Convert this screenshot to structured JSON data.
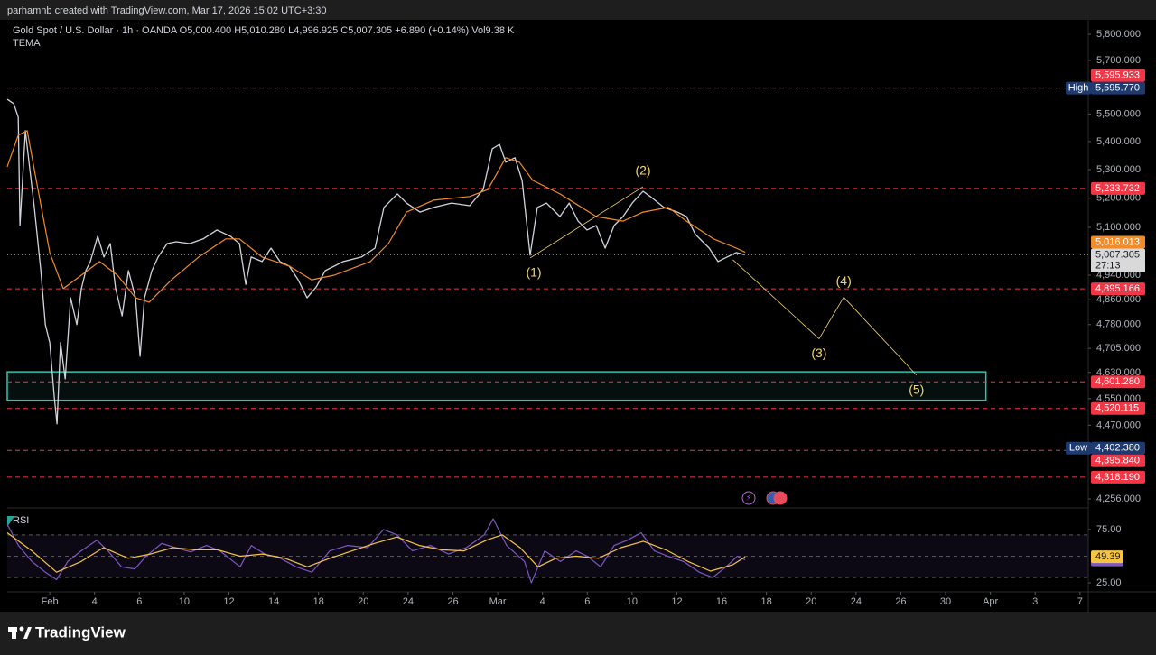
{
  "header": {
    "caption": "parhamnb created with TradingView.com, Mar 17, 2026 15:02 UTC+3:30"
  },
  "footer": {
    "brand": "TradingView"
  },
  "chart_data": [
    {
      "type": "line",
      "ohlc": [
        {
          "key": "O",
          "value": "5,000.400"
        },
        {
          "key": "H",
          "value": "5,010.280"
        },
        {
          "key": "L",
          "value": "4,996.925"
        },
        {
          "key": "C",
          "value": "5,007.305"
        }
      ],
      "change": "+6.890 (+0.14%)",
      "volume": {
        "key": "Vol",
        "value": "9.38 K"
      },
      "log": true,
      "xlim": [
        -1.9,
        46.37
      ],
      "xticks": [
        {
          "value": 0,
          "label": "Feb"
        },
        {
          "value": 2,
          "label": "4"
        },
        {
          "value": 4,
          "label": "6"
        },
        {
          "value": 6,
          "label": "10"
        },
        {
          "value": 8,
          "label": "12"
        },
        {
          "value": 10,
          "label": "14"
        },
        {
          "value": 12,
          "label": "18"
        },
        {
          "value": 14,
          "label": "20"
        },
        {
          "value": 16,
          "label": "24"
        },
        {
          "value": 18,
          "label": "26"
        },
        {
          "value": 20,
          "label": "Mar"
        },
        {
          "value": 22,
          "label": "4"
        },
        {
          "value": 24,
          "label": "6"
        },
        {
          "value": 26,
          "label": "10"
        },
        {
          "value": 28,
          "label": "12"
        },
        {
          "value": 30,
          "label": "16"
        },
        {
          "value": 32,
          "label": "18"
        },
        {
          "value": 34,
          "label": "20"
        },
        {
          "value": 36,
          "label": "24"
        },
        {
          "value": 38,
          "label": "26"
        },
        {
          "value": 40,
          "label": "30"
        },
        {
          "value": 42,
          "label": "Apr"
        },
        {
          "value": 44,
          "label": "3"
        },
        {
          "value": 46,
          "label": "7"
        }
      ],
      "ylim": [
        4233,
        5856
      ],
      "yticks": [
        {
          "value": 5800,
          "label": "5,800.000"
        },
        {
          "value": 5700,
          "label": "5,700.000"
        },
        {
          "value": 5500,
          "label": "5,500.000"
        },
        {
          "value": 5400,
          "label": "5,400.000"
        },
        {
          "value": 5300,
          "label": "5,300.000"
        },
        {
          "value": 5200,
          "label": "5,200.000"
        },
        {
          "value": 5100,
          "label": "5,100.000"
        },
        {
          "value": 4940,
          "label": "4,940.000"
        },
        {
          "value": 4860,
          "label": "4,860.000"
        },
        {
          "value": 4780,
          "label": "4,780.000"
        },
        {
          "value": 4705,
          "label": "4,705.000"
        },
        {
          "value": 4630,
          "label": "4,630.000"
        },
        {
          "value": 4550,
          "label": "4,550.000"
        },
        {
          "value": 4470,
          "label": "4,470.000"
        },
        {
          "value": 4256,
          "label": "4,256.000"
        }
      ],
      "series": [
        {
          "name": "Gold Spot / U.S. Dollar · 1h · OANDA",
          "color": "#d1d4dc",
          "x": [
            -1.9,
            -1.61,
            -1.41,
            -1.33,
            -1.09,
            -0.93,
            -0.69,
            -0.4,
            -0.2,
            0,
            0.2,
            0.32,
            0.48,
            0.69,
            0.93,
            1.21,
            1.41,
            1.61,
            1.81,
            2.14,
            2.42,
            2.7,
            2.94,
            3.23,
            3.51,
            3.83,
            4.03,
            4.23,
            4.56,
            4.84,
            5.24,
            5.65,
            6.25,
            6.85,
            7.46,
            8.06,
            8.47,
            8.75,
            8.99,
            9.48,
            9.88,
            10.28,
            10.69,
            11.09,
            11.49,
            11.9,
            12.3,
            13.1,
            13.91,
            14.52,
            14.92,
            15.52,
            15.93,
            16.53,
            17.14,
            17.94,
            18.75,
            19.35,
            19.76,
            20.08,
            20.36,
            20.77,
            21.09,
            21.45,
            21.77,
            22.18,
            22.78,
            23.19,
            23.59,
            23.99,
            24.4,
            24.8,
            25.2,
            25.6,
            26.01,
            26.49,
            26.81,
            27.42,
            28.02,
            28.43,
            28.83,
            29.44,
            29.84,
            30.24,
            30.65,
            31.05
          ],
          "values": [
            5554,
            5538,
            5488,
            5106,
            5439,
            5326,
            5168,
            4955,
            4780,
            4723,
            4555,
            4474,
            4723,
            4610,
            4866,
            4780,
            4896,
            4955,
            4985,
            5070,
            5000,
            5045,
            4896,
            4808,
            4955,
            4866,
            4680,
            4866,
            4955,
            5000,
            5045,
            5051,
            5045,
            5061,
            5091,
            5070,
            5045,
            4910,
            5000,
            4985,
            5030,
            4985,
            4970,
            4925,
            4866,
            4902,
            4955,
            4985,
            5000,
            5030,
            5168,
            5215,
            5183,
            5152,
            5168,
            5183,
            5174,
            5230,
            5374,
            5390,
            5326,
            5342,
            5262,
            5006,
            5168,
            5183,
            5137,
            5183,
            5121,
            5091,
            5106,
            5030,
            5106,
            5137,
            5183,
            5224,
            5206,
            5168,
            5152,
            5137,
            5076,
            5030,
            4985,
            5000,
            5015,
            5007.305
          ]
        },
        {
          "name": "TEMA",
          "color": "#f28c28",
          "x": [
            -1.9,
            -1.41,
            -1.01,
            -0.6,
            0,
            0.6,
            1.41,
            2.22,
            3.02,
            3.83,
            4.44,
            5.44,
            6.65,
            7.86,
            8.47,
            9.48,
            10.69,
            11.69,
            12.7,
            14.31,
            15.12,
            15.93,
            17.14,
            18.75,
            19.56,
            20.36,
            20.97,
            21.57,
            22.78,
            24.4,
            25.6,
            26.49,
            27.62,
            28.43,
            29.64,
            30.65,
            31.05
          ],
          "values": [
            5310,
            5423,
            5439,
            5262,
            5015,
            4896,
            4940,
            4985,
            4940,
            4866,
            4852,
            4925,
            5000,
            5061,
            5061,
            5000,
            4970,
            4925,
            4940,
            4985,
            5045,
            5152,
            5193,
            5206,
            5230,
            5342,
            5326,
            5262,
            5215,
            5137,
            5121,
            5152,
            5168,
            5121,
            5061,
            5030,
            5016.013
          ]
        }
      ],
      "levels": [
        {
          "value": 5595.933,
          "label": "5,595.933"
        },
        {
          "value": 5233.732,
          "label": "5,233.732"
        },
        {
          "value": 4895.166,
          "label": "4,895.166"
        },
        {
          "value": 4601.28,
          "label": "4,601.280"
        },
        {
          "value": 4520.115,
          "label": "4,520.115"
        },
        {
          "value": 4395.84,
          "label": "4,395.840"
        },
        {
          "value": 4318.19,
          "label": "4,318.190"
        }
      ],
      "level_color": "#f23645",
      "price_labels": [
        {
          "value": 5007.305,
          "label": "5,007.305",
          "countdown": "27:13",
          "color": "#d9d9d9"
        },
        {
          "value": 5016.013,
          "label": "5,016.013",
          "color": "#f28c28"
        },
        {
          "tag": "High",
          "value": 5595.77,
          "label": "5,595.770",
          "color": "#1f3a6e"
        },
        {
          "tag": "Low",
          "value": 4402.38,
          "label": "4,402.380",
          "color": "#1f3a6e"
        }
      ],
      "zone": {
        "low": 4545,
        "high": 4632,
        "x_end": 41.8,
        "color": "#2ec4b0"
      },
      "waves": [
        {
          "label": "(1)",
          "x": 21.45,
          "value": 4997
        },
        {
          "label": "(2)",
          "x": 26.49,
          "value": 5240
        },
        {
          "label": "(3)",
          "x": 34.35,
          "value": 4735
        },
        {
          "label": "(4)",
          "x": 35.45,
          "value": 4868
        },
        {
          "label": "(5)",
          "x": 38.7,
          "value": 4622
        }
      ],
      "projection_start": {
        "x": 30.5,
        "value": 4991
      },
      "wave_color": "#f5d76e"
    },
    {
      "type": "line",
      "title": "RSI",
      "ylim": [
        17.4,
        91
      ],
      "yticks": [
        {
          "value": 75,
          "label": "75.00"
        },
        {
          "value": 25,
          "label": "25.00"
        }
      ],
      "levels": [
        70,
        50,
        30
      ],
      "series": [
        {
          "color": "#7e57c2",
          "x": [
            -1.9,
            -1.4,
            -0.8,
            -0.2,
            0.3,
            0.8,
            1.4,
            2.1,
            2.6,
            3.2,
            3.8,
            4.3,
            5,
            5.6,
            6.3,
            7,
            7.6,
            8.5,
            9,
            9.6,
            10.3,
            11,
            11.7,
            12.5,
            13.3,
            14.2,
            14.9,
            15.5,
            16.2,
            17,
            17.8,
            18.6,
            19.4,
            19.8,
            20.4,
            21.2,
            21.5,
            22.1,
            22.8,
            23.5,
            24,
            24.6,
            25.2,
            25.8,
            26.4,
            27,
            27.6,
            28.3,
            29,
            29.6,
            30.2,
            30.7,
            31.05
          ],
          "values": [
            80,
            60,
            45,
            35,
            28,
            45,
            55,
            65,
            55,
            40,
            38,
            50,
            62,
            58,
            54,
            60,
            55,
            40,
            60,
            52,
            48,
            40,
            35,
            55,
            60,
            58,
            75,
            70,
            55,
            60,
            52,
            58,
            70,
            85,
            60,
            45,
            25,
            55,
            45,
            55,
            50,
            40,
            60,
            65,
            72,
            55,
            50,
            45,
            35,
            30,
            40,
            50,
            46.53
          ]
        },
        {
          "color": "#f5c542",
          "x": [
            -1.9,
            -0.8,
            0.3,
            1.4,
            2.4,
            3.5,
            4.5,
            5.5,
            6.5,
            7.5,
            8.5,
            9.5,
            10.5,
            11.5,
            12.5,
            13.5,
            14.5,
            15.5,
            16.5,
            17.5,
            18.5,
            19.5,
            20.2,
            21,
            21.8,
            22.6,
            23.5,
            24.5,
            25.5,
            26.5,
            27.5,
            28.5,
            29.5,
            30.5,
            31.05
          ],
          "values": [
            72,
            55,
            35,
            45,
            58,
            48,
            52,
            58,
            56,
            56,
            50,
            52,
            48,
            40,
            48,
            55,
            62,
            68,
            60,
            56,
            55,
            65,
            70,
            58,
            40,
            48,
            50,
            48,
            58,
            64,
            56,
            45,
            36,
            42,
            49.39
          ]
        }
      ]
    }
  ]
}
